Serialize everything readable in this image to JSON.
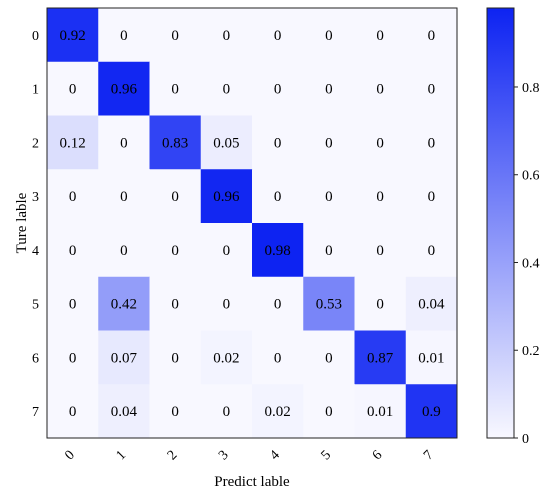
{
  "chart_data": {
    "type": "heatmap",
    "title": "",
    "xlabel": "Predict lable",
    "ylabel": "Ture lable",
    "x_categories": [
      "0",
      "1",
      "2",
      "3",
      "4",
      "5",
      "6",
      "7"
    ],
    "y_categories": [
      "0",
      "1",
      "2",
      "3",
      "4",
      "5",
      "6",
      "7"
    ],
    "values": [
      [
        "0.92",
        "0",
        "0",
        "0",
        "0",
        "0",
        "0",
        "0"
      ],
      [
        "0",
        "0.96",
        "0",
        "0",
        "0",
        "0",
        "0",
        "0"
      ],
      [
        "0.12",
        "0",
        "0.83",
        "0.05",
        "0",
        "0",
        "0",
        "0"
      ],
      [
        "0",
        "0",
        "0",
        "0.96",
        "0",
        "0",
        "0",
        "0"
      ],
      [
        "0",
        "0",
        "0",
        "0",
        "0.98",
        "0",
        "0",
        "0"
      ],
      [
        "0",
        "0.42",
        "0",
        "0",
        "0",
        "0.53",
        "0",
        "0.04"
      ],
      [
        "0",
        "0.07",
        "0",
        "0.02",
        "0",
        "0",
        "0.87",
        "0.01"
      ],
      [
        "0",
        "0.04",
        "0",
        "0",
        "0.02",
        "0",
        "0.01",
        "0.9"
      ]
    ],
    "colorbar": {
      "range": [
        0,
        0.98
      ],
      "ticks": [
        "0",
        "0.2",
        "0.4",
        "0.6",
        "0.8"
      ],
      "low_color": "#f8f8ff",
      "high_color": "#0d23f2"
    },
    "grid": false,
    "legend": "none"
  }
}
